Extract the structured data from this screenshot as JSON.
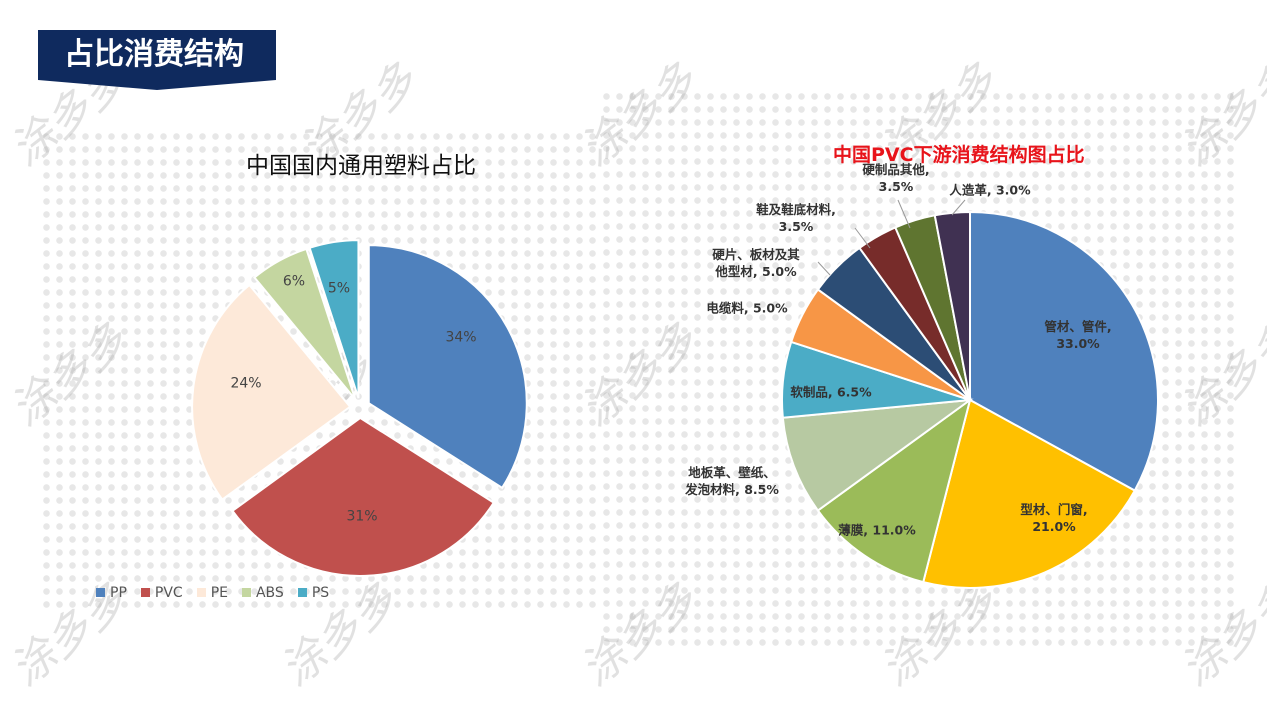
{
  "header": {
    "title": "占比消费结构"
  },
  "watermark": "涂多多",
  "chart_data": [
    {
      "type": "pie",
      "title": "中国国内通用塑料占比",
      "categories": [
        "PP",
        "PVC",
        "PE",
        "ABS",
        "PS"
      ],
      "values": [
        34,
        31,
        24,
        6,
        5
      ],
      "data_labels": [
        "34%",
        "31%",
        "24%",
        "6%",
        "5%"
      ],
      "colors": [
        "#4f81bd",
        "#c0504d",
        "#fde9d9",
        "#c4d6a0",
        "#4bacc6"
      ],
      "exploded": true,
      "legend": "bottom-left"
    },
    {
      "type": "pie",
      "title": "中国PVC下游消费结构图占比",
      "categories": [
        "管材、管件",
        "型材、门窗",
        "薄膜",
        "地板革、壁纸、发泡材料",
        "软制品",
        "电缆料",
        "硬片、板材及其他型材",
        "鞋及鞋底材料",
        "硬制品其他",
        "人造革"
      ],
      "values": [
        33.0,
        21.0,
        11.0,
        8.5,
        6.5,
        5.0,
        5.0,
        3.5,
        3.5,
        3.0
      ],
      "data_labels": [
        "管材、管件,\n33.0%",
        "型材、门窗,\n21.0%",
        "薄膜, 11.0%",
        "地板革、壁纸、\n发泡材料, 8.5%",
        "软制品, 6.5%",
        "电缆料, 5.0%",
        "硬片、板材及其\n他型材, 5.0%",
        "鞋及鞋底材料,\n3.5%",
        "硬制品其他,\n3.5%",
        "人造革, 3.0%"
      ],
      "colors": [
        "#4f81bd",
        "#ffc000",
        "#9bbb59",
        "#b7c9a2",
        "#4bacc6",
        "#f79646",
        "#2c4d75",
        "#772c2a",
        "#5f7530",
        "#403152"
      ],
      "legend": "none"
    }
  ]
}
